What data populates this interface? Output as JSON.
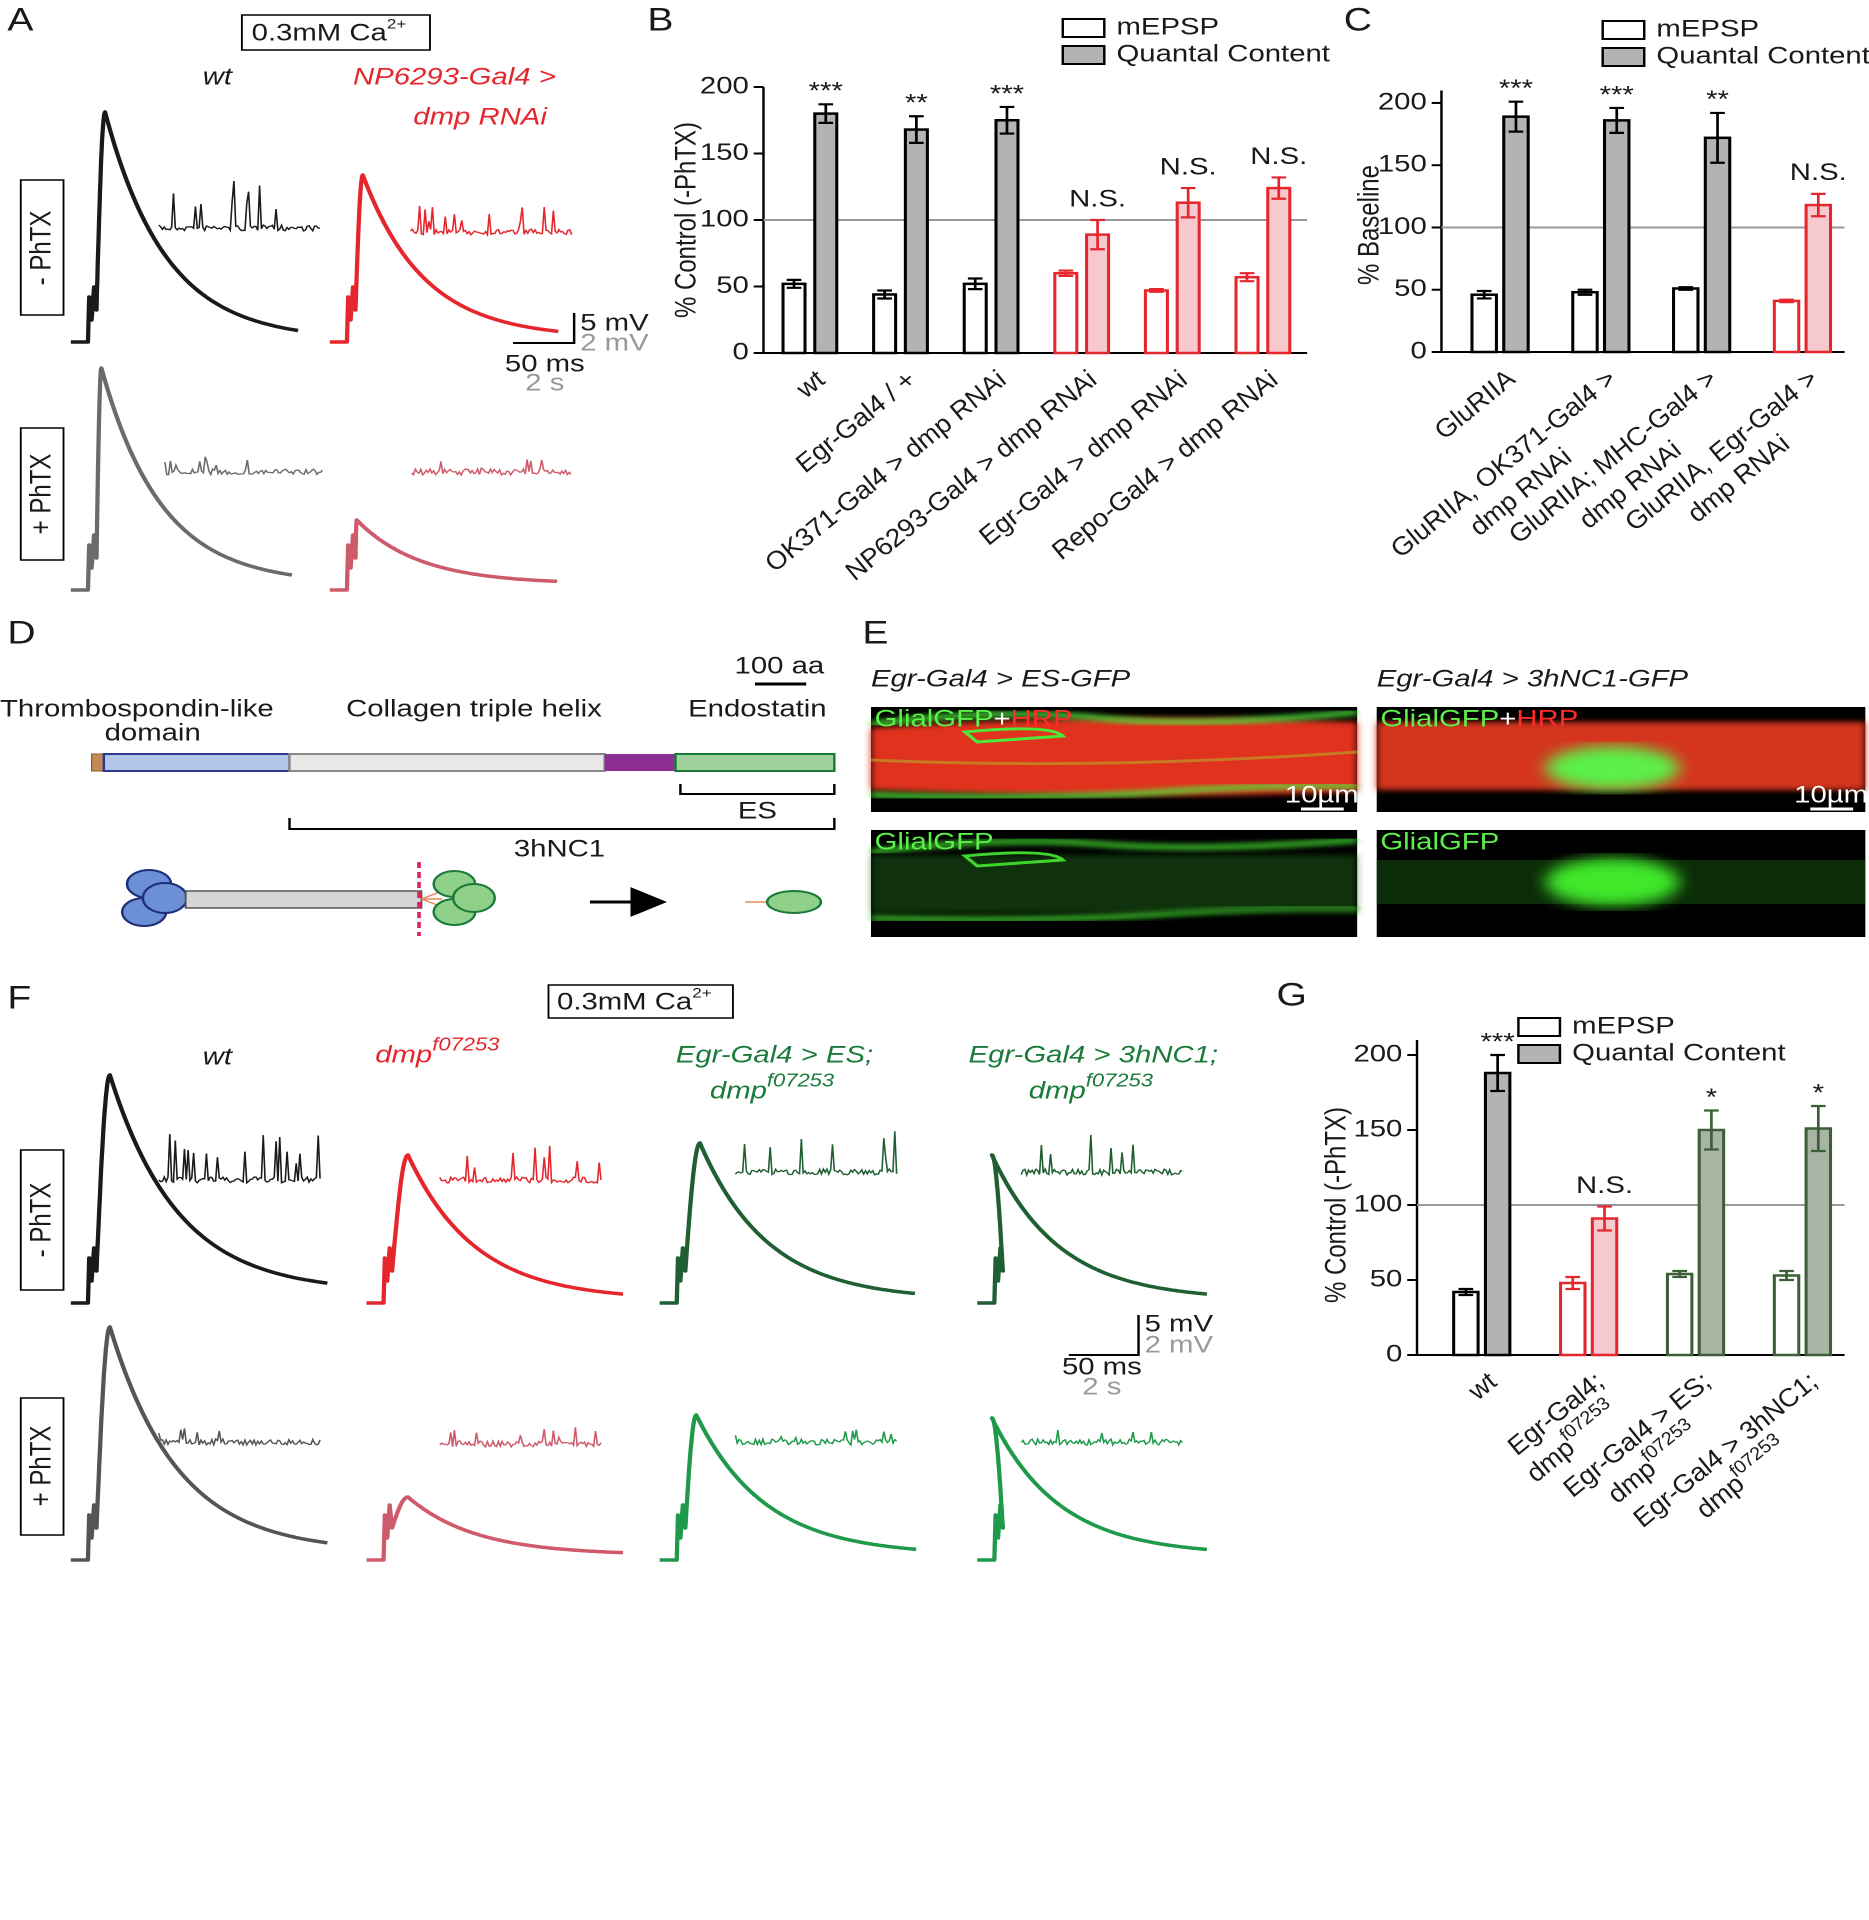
{
  "chart_data": [
    {
      "type": "bar",
      "ylabel": "% Control (-PhTX)",
      "categories": [
        "wt",
        "Egr-Gal4 / +",
        "OK371-Gal4 > dmp RNAi",
        "NP6293-Gal4 > dmp RNAi",
        "Egr-Gal4 > dmp RNAi",
        "Repo-Gal4 > dmp RNAi"
      ],
      "group_colors": [
        "#000000",
        "#000000",
        "#000000",
        "#e5262c",
        "#e5262c",
        "#e5262c"
      ],
      "series": [
        {
          "name": "mEPSP",
          "color": "#ffffff",
          "values": [
            52,
            44,
            52,
            60,
            47,
            57
          ],
          "errors": [
            3,
            3,
            4,
            2,
            1,
            3
          ]
        },
        {
          "name": "Quantal Content",
          "colors": [
            "#b3b3b3",
            "#b3b3b3",
            "#b3b3b3",
            "#f6c9ce",
            "#f6c9ce",
            "#f6c9ce"
          ],
          "values": [
            180,
            168,
            175,
            89,
            113,
            124
          ],
          "errors": [
            7,
            10,
            10,
            11,
            11,
            8
          ]
        }
      ],
      "annotations": [
        "***",
        "**",
        "***",
        "N.S.",
        "N.S.",
        "N.S."
      ],
      "reference_line": 100,
      "ylim": [
        0,
        200
      ],
      "yticks": [
        0,
        50,
        100,
        150,
        200
      ]
    },
    {
      "type": "bar",
      "ylabel": "% Baseline",
      "categories": [
        "GluRIIA",
        "GluRIIA, OK371-Gal4 >\ndmp RNAi",
        "GluRIIA; MHC-Gal4 >\ndmp RNAi",
        "GluRIIA, Egr-Gal4 >\ndmp RNAi"
      ],
      "group_colors": [
        "#000000",
        "#000000",
        "#000000",
        "#e5262c"
      ],
      "series": [
        {
          "name": "mEPSP",
          "color": "#ffffff",
          "values": [
            46,
            48,
            51,
            41
          ],
          "errors": [
            3,
            2,
            1,
            1
          ]
        },
        {
          "name": "Quantal Content",
          "colors": [
            "#b3b3b3",
            "#b3b3b3",
            "#b3b3b3",
            "#f6c9ce"
          ],
          "values": [
            189,
            186,
            172,
            118
          ],
          "errors": [
            12,
            10,
            20,
            9
          ]
        }
      ],
      "annotations": [
        "***",
        "***",
        "**",
        "N.S."
      ],
      "reference_line": 100,
      "ylim": [
        0,
        210
      ],
      "yticks": [
        0,
        50,
        100,
        150,
        200
      ]
    },
    {
      "type": "bar",
      "ylabel": "% Control (-PhTX)",
      "categories": [
        "wt",
        "Egr-Gal4;\ndmp",
        "Egr-Gal4 > ES;\ndmp",
        "Egr-Gal4 > 3hNC1;\ndmp"
      ],
      "category_superscripts": [
        null,
        "f07253",
        "f07253",
        "f07253"
      ],
      "group_colors": [
        "#000000",
        "#e5262c",
        "#3c5f37",
        "#3c5f37"
      ],
      "series": [
        {
          "name": "mEPSP",
          "color": "#ffffff",
          "values": [
            42,
            48,
            54,
            53
          ],
          "errors": [
            2,
            4,
            2,
            3
          ]
        },
        {
          "name": "Quantal Content",
          "colors": [
            "#b3b3b3",
            "#f6c9ce",
            "#a8b5a4",
            "#a8b5a4"
          ],
          "values": [
            188,
            91,
            150,
            151
          ],
          "errors": [
            12,
            8,
            13,
            15
          ]
        }
      ],
      "annotations": [
        "***",
        "N.S.",
        "*",
        "*"
      ],
      "reference_line": 100,
      "ylim": [
        0,
        210
      ],
      "yticks": [
        0,
        50,
        100,
        150,
        200
      ]
    }
  ],
  "panel_labels": [
    "A",
    "B",
    "C",
    "D",
    "E",
    "F",
    "G"
  ],
  "panel_a": {
    "condition": "0.3mM Ca",
    "condition_sup": "2+",
    "genotypes": [
      "wt",
      "NP6293-Gal4 >",
      "dmp RNAi"
    ],
    "treatments": [
      "- PhTX",
      "+ PhTX"
    ],
    "scale": [
      "5 mV",
      "2 mV",
      "50 ms",
      "2 s"
    ]
  },
  "panel_d": {
    "scale": "100 aa",
    "domains": [
      "Thrombospondin-like",
      "domain",
      "Collagen triple helix",
      "Endostatin"
    ],
    "fragments": [
      "ES",
      "3hNC1"
    ]
  },
  "panel_e": {
    "genotypes": [
      "Egr-Gal4 > ES-GFP",
      "Egr-Gal4 > 3hNC1-GFP"
    ],
    "channels": [
      "GlialGFP",
      "+",
      "HRP"
    ],
    "scale": "10µm"
  },
  "panel_f": {
    "condition": "0.3mM Ca",
    "condition_sup": "2+",
    "genotypes": [
      "wt",
      "dmp",
      "Egr-Gal4 > ES;",
      "dmp",
      "Egr-Gal4 > 3hNC1;",
      "dmp"
    ],
    "allele": "f07253",
    "treatments": [
      "- PhTX",
      "+ PhTX"
    ],
    "scale": [
      "5 mV",
      "2 mV",
      "50 ms",
      "2 s"
    ]
  }
}
